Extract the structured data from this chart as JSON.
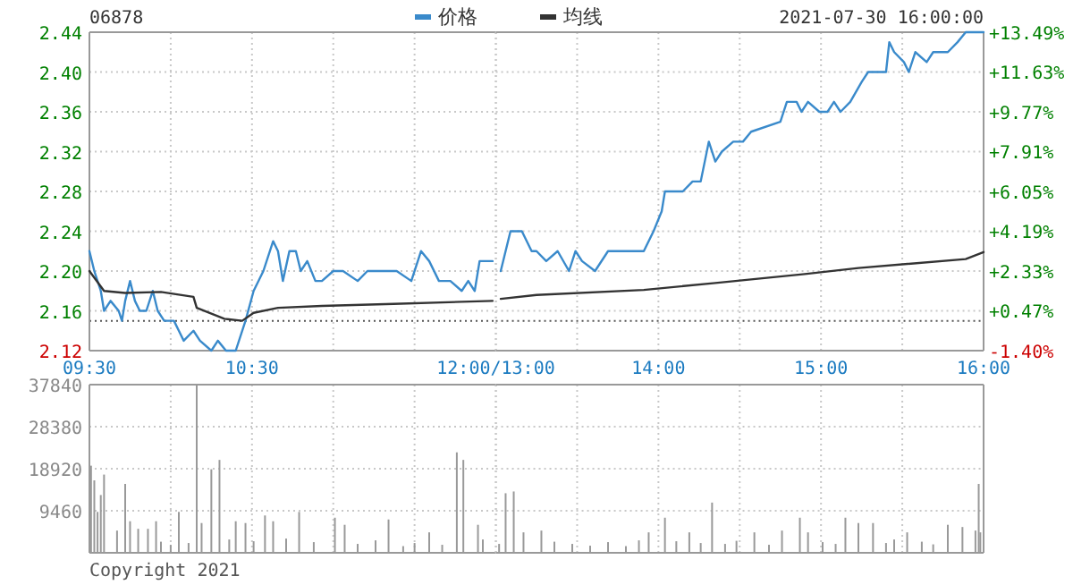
{
  "chart_data": [
    {
      "type": "line",
      "title": "06878",
      "legend": "top",
      "grid": true,
      "xlim": [
        9.5,
        12
      ],
      "xticks": [
        {
          "value": 9.5,
          "label": "09:30"
        },
        {
          "value": 10,
          "label": null
        },
        {
          "value": 10.5,
          "label": "10:30"
        },
        {
          "value": 11,
          "label": null
        },
        {
          "value": 11.5,
          "label": null
        },
        {
          "value": 12,
          "label": "12:00/13:00"
        }
      ],
      "ylim": [
        2.12,
        2.44
      ],
      "yticks": [
        {
          "value": 2.12,
          "label": "2.12"
        },
        {
          "value": 2.16,
          "label": "2.16"
        },
        {
          "value": 2.2,
          "label": "2.20"
        },
        {
          "value": 2.24,
          "label": "2.24"
        },
        {
          "value": 2.28,
          "label": "2.28"
        },
        {
          "value": 2.32,
          "label": "2.32"
        },
        {
          "value": 2.36,
          "label": "2.36"
        },
        {
          "value": 2.4,
          "label": "2.40"
        },
        {
          "value": 2.44,
          "label": "2.44"
        }
      ],
      "ref_lines": [
        {
          "axis": "y",
          "value": 2.15,
          "color": "#555555",
          "line_style": "dotted"
        }
      ],
      "series": [
        {
          "name": "价格",
          "color": "#3a8acb",
          "x": [
            9.5,
            9.53,
            9.57,
            9.59,
            9.63,
            9.68,
            9.7,
            9.72,
            9.75,
            9.78,
            9.81,
            9.85,
            9.89,
            9.92,
            9.96,
            10.02,
            10.05,
            10.08,
            10.14,
            10.18,
            10.25,
            10.29,
            10.34,
            10.4,
            10.46,
            10.51,
            10.57,
            10.63,
            10.66,
            10.69,
            10.73,
            10.77,
            10.8,
            10.84,
            10.89,
            10.93,
            11.0,
            11.06,
            11.15,
            11.21,
            11.26,
            11.32,
            11.39,
            11.48,
            11.54,
            11.59,
            11.65,
            11.72,
            11.79,
            11.83,
            11.87,
            11.9,
            11.98
          ],
          "values": [
            2.22,
            2.2,
            2.18,
            2.16,
            2.17,
            2.16,
            2.15,
            2.17,
            2.19,
            2.17,
            2.16,
            2.16,
            2.18,
            2.16,
            2.15,
            2.15,
            2.14,
            2.13,
            2.14,
            2.13,
            2.12,
            2.13,
            2.12,
            2.12,
            2.15,
            2.18,
            2.2,
            2.23,
            2.22,
            2.19,
            2.22,
            2.22,
            2.2,
            2.21,
            2.19,
            2.19,
            2.2,
            2.2,
            2.19,
            2.2,
            2.2,
            2.2,
            2.2,
            2.19,
            2.22,
            2.21,
            2.19,
            2.19,
            2.18,
            2.19,
            2.18,
            2.21,
            2.21
          ]
        },
        {
          "name": "均线",
          "color": "#333333",
          "x": [
            9.5,
            9.59,
            9.72,
            9.94,
            10.14,
            10.16,
            10.33,
            10.44,
            10.51,
            10.66,
            10.93,
            11.37,
            11.98
          ],
          "values": [
            2.2,
            2.18,
            2.178,
            2.179,
            2.174,
            2.163,
            2.152,
            2.15,
            2.158,
            2.163,
            2.165,
            2.167,
            2.17
          ]
        }
      ]
    },
    {
      "type": "line",
      "subtitle": "2021-07-30 16:00:00",
      "grid": true,
      "tick_labels": "x",
      "xlim": [
        13,
        16
      ],
      "xticks": [
        {
          "value": 13,
          "label": null
        },
        {
          "value": 13.5,
          "label": null
        },
        {
          "value": 14,
          "label": "14:00"
        },
        {
          "value": 14.5,
          "label": null
        },
        {
          "value": 15,
          "label": "15:00"
        },
        {
          "value": 15.5,
          "label": null
        },
        {
          "value": 16,
          "label": "16:00"
        }
      ],
      "ylim": [
        2.12,
        2.44
      ],
      "yticks": [
        2.12,
        2.16,
        2.2,
        2.24,
        2.28,
        2.32,
        2.36,
        2.4,
        2.44
      ],
      "y2lim": [
        -1.4,
        13.49
      ],
      "y2ticks": [
        {
          "value": -1.4,
          "label": "-1.40%"
        },
        {
          "value": 0.47,
          "label": "+0.47%"
        },
        {
          "value": 2.33,
          "label": "+2.33%"
        },
        {
          "value": 4.19,
          "label": "+4.19%"
        },
        {
          "value": 6.05,
          "label": "+6.05%"
        },
        {
          "value": 7.91,
          "label": "+7.91%"
        },
        {
          "value": 9.77,
          "label": "+9.77%"
        },
        {
          "value": 11.63,
          "label": "+11.63%"
        },
        {
          "value": 13.49,
          "label": "+13.49%"
        }
      ],
      "ref_lines": [
        {
          "axis": "y",
          "value": 2.15,
          "color": "#555555",
          "line_style": "dotted"
        }
      ],
      "series": [
        {
          "color": "#3a8acb",
          "x": [
            13.03,
            13.09,
            13.16,
            13.22,
            13.25,
            13.31,
            13.38,
            13.45,
            13.49,
            13.53,
            13.61,
            13.69,
            13.8,
            13.91,
            13.97,
            14.02,
            14.04,
            14.11,
            14.15,
            14.21,
            14.26,
            14.31,
            14.35,
            14.39,
            14.46,
            14.52,
            14.57,
            14.75,
            14.79,
            14.85,
            14.88,
            14.92,
            14.99,
            15.04,
            15.08,
            15.12,
            15.18,
            15.25,
            15.29,
            15.4,
            15.42,
            15.45,
            15.51,
            15.54,
            15.58,
            15.65,
            15.69,
            15.78,
            15.84,
            15.89,
            16.0
          ],
          "values": [
            2.2,
            2.24,
            2.24,
            2.22,
            2.22,
            2.21,
            2.22,
            2.2,
            2.22,
            2.21,
            2.2,
            2.22,
            2.22,
            2.22,
            2.24,
            2.26,
            2.28,
            2.28,
            2.28,
            2.29,
            2.29,
            2.33,
            2.31,
            2.32,
            2.33,
            2.33,
            2.34,
            2.35,
            2.37,
            2.37,
            2.36,
            2.37,
            2.36,
            2.36,
            2.37,
            2.36,
            2.37,
            2.39,
            2.4,
            2.4,
            2.43,
            2.42,
            2.41,
            2.4,
            2.42,
            2.41,
            2.42,
            2.42,
            2.43,
            2.44,
            2.44
          ]
        },
        {
          "color": "#333333",
          "x": [
            13.03,
            13.25,
            13.91,
            14.35,
            14.9,
            15.23,
            15.89,
            16.0
          ],
          "values": [
            2.172,
            2.176,
            2.181,
            2.188,
            2.197,
            2.203,
            2.212,
            2.219
          ]
        }
      ]
    },
    {
      "type": "bar",
      "grid": true,
      "tick_labels": "y",
      "xlim": [
        9.5,
        12
      ],
      "xticks": [
        9.5,
        10,
        10.5,
        11,
        11.5,
        12
      ],
      "ylim": [
        0,
        37840
      ],
      "yticks": [
        9460,
        18920,
        28380,
        37840
      ],
      "annotations": [
        "Copyright 2021"
      ],
      "series": [
        {
          "color": "#999999",
          "x": [
            9.51,
            9.53,
            9.55,
            9.57,
            9.59,
            9.67,
            9.72,
            9.75,
            9.8,
            9.86,
            9.91,
            9.94,
            10.0,
            10.05,
            10.11,
            10.16,
            10.19,
            10.25,
            10.3,
            10.36,
            10.4,
            10.46,
            10.51,
            10.58,
            10.63,
            10.71,
            10.79,
            10.88,
            11.01,
            11.07,
            11.15,
            11.26,
            11.34,
            11.43,
            11.5,
            11.59,
            11.67,
            11.76,
            11.8,
            11.89,
            11.92
          ],
          "values": [
            19600,
            16300,
            9200,
            13000,
            17600,
            5000,
            15500,
            7100,
            5400,
            5400,
            7100,
            2500,
            1800,
            9200,
            2200,
            37800,
            6700,
            18800,
            20900,
            3000,
            7100,
            6700,
            2600,
            8400,
            7100,
            3200,
            9200,
            2400,
            7900,
            6300,
            2000,
            2800,
            7500,
            1500,
            2200,
            4600,
            1800,
            22600,
            20900,
            6300,
            3000
          ]
        }
      ]
    },
    {
      "type": "bar",
      "grid": true,
      "tick_labels": false,
      "xlim": [
        13,
        16
      ],
      "xticks": [
        13,
        13.5,
        14,
        14.5,
        15,
        15.5,
        16
      ],
      "ylim": [
        0,
        37840
      ],
      "yticks": [
        9460,
        18920,
        28380,
        37840
      ],
      "series": [
        {
          "color": "#999999",
          "x": [
            13.02,
            13.06,
            13.11,
            13.17,
            13.28,
            13.36,
            13.47,
            13.58,
            13.69,
            13.8,
            13.88,
            13.94,
            14.04,
            14.11,
            14.19,
            14.26,
            14.33,
            14.41,
            14.48,
            14.59,
            14.68,
            14.76,
            14.87,
            14.92,
            15.01,
            15.09,
            15.15,
            15.23,
            15.32,
            15.4,
            15.45,
            15.53,
            15.62,
            15.69,
            15.78,
            15.87,
            15.95,
            15.97,
            15.98
          ],
          "values": [
            2000,
            13400,
            13800,
            4600,
            5000,
            2500,
            2000,
            1600,
            2400,
            1500,
            2800,
            4600,
            7900,
            2600,
            4600,
            2200,
            11300,
            2000,
            2700,
            4600,
            1800,
            5000,
            7900,
            4600,
            2400,
            2000,
            7900,
            6700,
            6700,
            2200,
            3000,
            4600,
            2500,
            1900,
            6300,
            5800,
            5000,
            15500,
            4600
          ]
        }
      ]
    }
  ]
}
